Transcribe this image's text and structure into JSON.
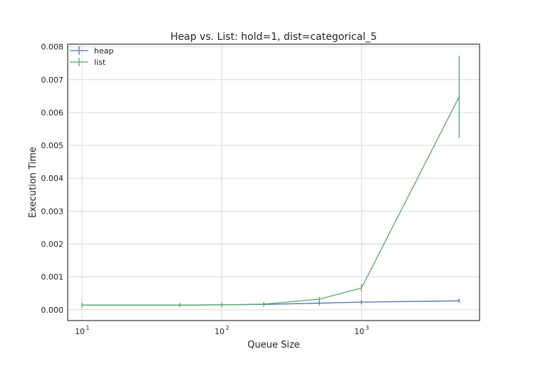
{
  "chart_data": {
    "type": "line",
    "title": "Heap vs. List: hold=1, dist=categorical_5",
    "xlabel": "Queue Size",
    "ylabel": "Execution Time",
    "xscale": "log",
    "xlim": [
      7.9,
      7000
    ],
    "ylim": [
      -0.00033,
      0.00808
    ],
    "x_ticks": [
      {
        "value": 10,
        "base": "10",
        "exp": "1"
      },
      {
        "value": 100,
        "base": "10",
        "exp": "2"
      },
      {
        "value": 1000,
        "base": "10",
        "exp": "3"
      }
    ],
    "y_ticks": [
      {
        "value": 0,
        "label": "0.000"
      },
      {
        "value": 0.001,
        "label": "0.001"
      },
      {
        "value": 0.002,
        "label": "0.002"
      },
      {
        "value": 0.003,
        "label": "0.003"
      },
      {
        "value": 0.004,
        "label": "0.004"
      },
      {
        "value": 0.005,
        "label": "0.005"
      },
      {
        "value": 0.006,
        "label": "0.006"
      },
      {
        "value": 0.007,
        "label": "0.007"
      },
      {
        "value": 0.008,
        "label": "0.008"
      }
    ],
    "grid": true,
    "legend_position": "top-left",
    "x": [
      10,
      50,
      100,
      200,
      500,
      1000,
      5000
    ],
    "series": [
      {
        "name": "heap",
        "color": "#4c72b0",
        "values": [
          0.00014,
          0.00014,
          0.00015,
          0.00016,
          0.0002,
          0.00023,
          0.00027
        ],
        "errors": [
          1e-05,
          1e-05,
          1e-05,
          1e-05,
          3e-05,
          2e-05,
          5e-05
        ]
      },
      {
        "name": "list",
        "color": "#55a868",
        "values": [
          0.00014,
          0.00014,
          0.00015,
          0.00017,
          0.00032,
          0.00066,
          0.00648
        ],
        "errors": [
          1e-05,
          1e-05,
          1e-05,
          2e-05,
          4e-05,
          0.00012,
          0.00125
        ]
      }
    ]
  }
}
